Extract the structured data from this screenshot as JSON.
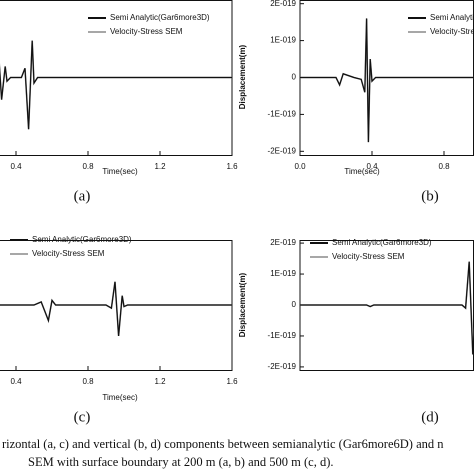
{
  "chart_data": [
    {
      "type": "line",
      "label": "(a)",
      "xlabel": "Time(sec)",
      "xlim": [
        0,
        1.6
      ],
      "ylim": [
        -2.1e-19,
        2.1e-19
      ],
      "xticks": [
        0.4,
        0.8,
        1.2,
        1.6
      ],
      "x": [
        0.3,
        0.32,
        0.34,
        0.35,
        0.37,
        0.43,
        0.45,
        0.47,
        0.49,
        0.5,
        0.52,
        1.6
      ],
      "series": [
        {
          "name": "Semi Analytic(Gar6more3D)",
          "color": "#111111",
          "values": [
            9e-20,
            -6e-20,
            3e-20,
            -1e-20,
            0,
            0,
            2.5e-20,
            -1.4e-19,
            1e-19,
            -1.5e-20,
            0,
            0
          ]
        },
        {
          "name": "Velocity-Stress SEM",
          "color": "#8a8a8a",
          "values": [
            9e-20,
            -6e-20,
            3e-20,
            -1e-20,
            0,
            0,
            2.5e-20,
            -1.4e-19,
            1e-19,
            -1.5e-20,
            0,
            0
          ]
        }
      ]
    },
    {
      "type": "line",
      "label": "(b)",
      "xlabel": "Time(sec)",
      "ylabel": "Displacement(m)",
      "xlim": [
        0,
        1.6
      ],
      "ylim": [
        -2.1e-19,
        2.1e-19
      ],
      "xticks": [
        {
          "value": 0,
          "label": "0.0"
        },
        0.4,
        0.8
      ],
      "yticks": [
        {
          "value": 2e-19,
          "label": "2E-019"
        },
        {
          "value": 1e-19,
          "label": "1E-019"
        },
        0,
        {
          "value": -1e-19,
          "label": "-1E-019"
        },
        {
          "value": -2e-19,
          "label": "-2E-019"
        }
      ],
      "x": [
        0,
        0.2,
        0.22,
        0.24,
        0.3,
        0.34,
        0.36,
        0.37,
        0.38,
        0.39,
        0.4,
        0.42,
        0.6,
        0.97
      ],
      "series": [
        {
          "name": "Semi Analytic(Gar6more3D)",
          "color": "#111111",
          "values": [
            0,
            0,
            -2e-20,
            1e-20,
            0,
            -5e-21,
            -4e-20,
            1.6e-19,
            -1.75e-19,
            5e-20,
            -1e-20,
            0,
            0,
            0
          ]
        },
        {
          "name": "Velocity-Stress SEM",
          "color": "#8a8a8a",
          "values": [
            0,
            0,
            -2e-20,
            1e-20,
            0,
            -5e-21,
            -4e-20,
            1.6e-19,
            -1.75e-19,
            5e-20,
            -1e-20,
            0,
            0,
            0
          ]
        }
      ]
    },
    {
      "type": "line",
      "label": "(c)",
      "xlabel": "Time(sec)",
      "xlim": [
        0,
        1.6
      ],
      "ylim": [
        -2.1e-19,
        2.1e-19
      ],
      "xticks": [
        0.4,
        0.8,
        1.2,
        1.6
      ],
      "x": [
        0.3,
        0.5,
        0.54,
        0.56,
        0.58,
        0.6,
        0.62,
        0.9,
        0.93,
        0.95,
        0.97,
        0.99,
        1.0,
        1.02,
        1.6
      ],
      "series": [
        {
          "name": "Semi Analytic(Gar6more3D)",
          "color": "#111111",
          "values": [
            0,
            0,
            1e-20,
            -2e-20,
            -5e-20,
            1.5e-20,
            0,
            0,
            -1e-20,
            7.5e-20,
            -1e-19,
            3e-20,
            -5e-21,
            0,
            0
          ]
        },
        {
          "name": "Velocity-Stress SEM",
          "color": "#8a8a8a",
          "values": [
            0,
            0,
            1e-20,
            -2e-20,
            -5e-20,
            1.5e-20,
            0,
            0,
            -1e-20,
            7.5e-20,
            -1e-19,
            3e-20,
            -5e-21,
            0,
            0
          ]
        }
      ]
    },
    {
      "type": "line",
      "label": "(d)",
      "ylabel": "Displacement(m)",
      "xlim": [
        0,
        1.6
      ],
      "ylim": [
        -2.1e-19,
        2.1e-19
      ],
      "yticks": [
        {
          "value": 2e-19,
          "label": "2E-019"
        },
        {
          "value": 1e-19,
          "label": "1E-019"
        },
        0,
        {
          "value": -1e-19,
          "label": "-1E-019"
        },
        {
          "value": -2e-19,
          "label": "-2E-019"
        }
      ],
      "x": [
        0,
        0.37,
        0.39,
        0.41,
        0.9,
        0.92,
        0.94,
        0.96,
        0.97
      ],
      "series": [
        {
          "name": "Semi Analytic(Gar6more3D)",
          "color": "#111111",
          "values": [
            0,
            0,
            -5e-21,
            0,
            0,
            -1e-20,
            1.4e-19,
            -1.6e-19,
            -5e-20
          ]
        },
        {
          "name": "Velocity-Stress SEM",
          "color": "#8a8a8a",
          "values": [
            0,
            0,
            -5e-21,
            0,
            0,
            -1e-20,
            1.4e-19,
            -1.6e-19,
            -5e-20
          ]
        }
      ]
    }
  ],
  "caption": {
    "lines": [
      "rizontal (a, c) and vertical (b, d) components between semianalytic (Gar6more6D) and n",
      "SEM with surface boundary at 200 m (a, b) and 500 m (c, d)."
    ]
  }
}
